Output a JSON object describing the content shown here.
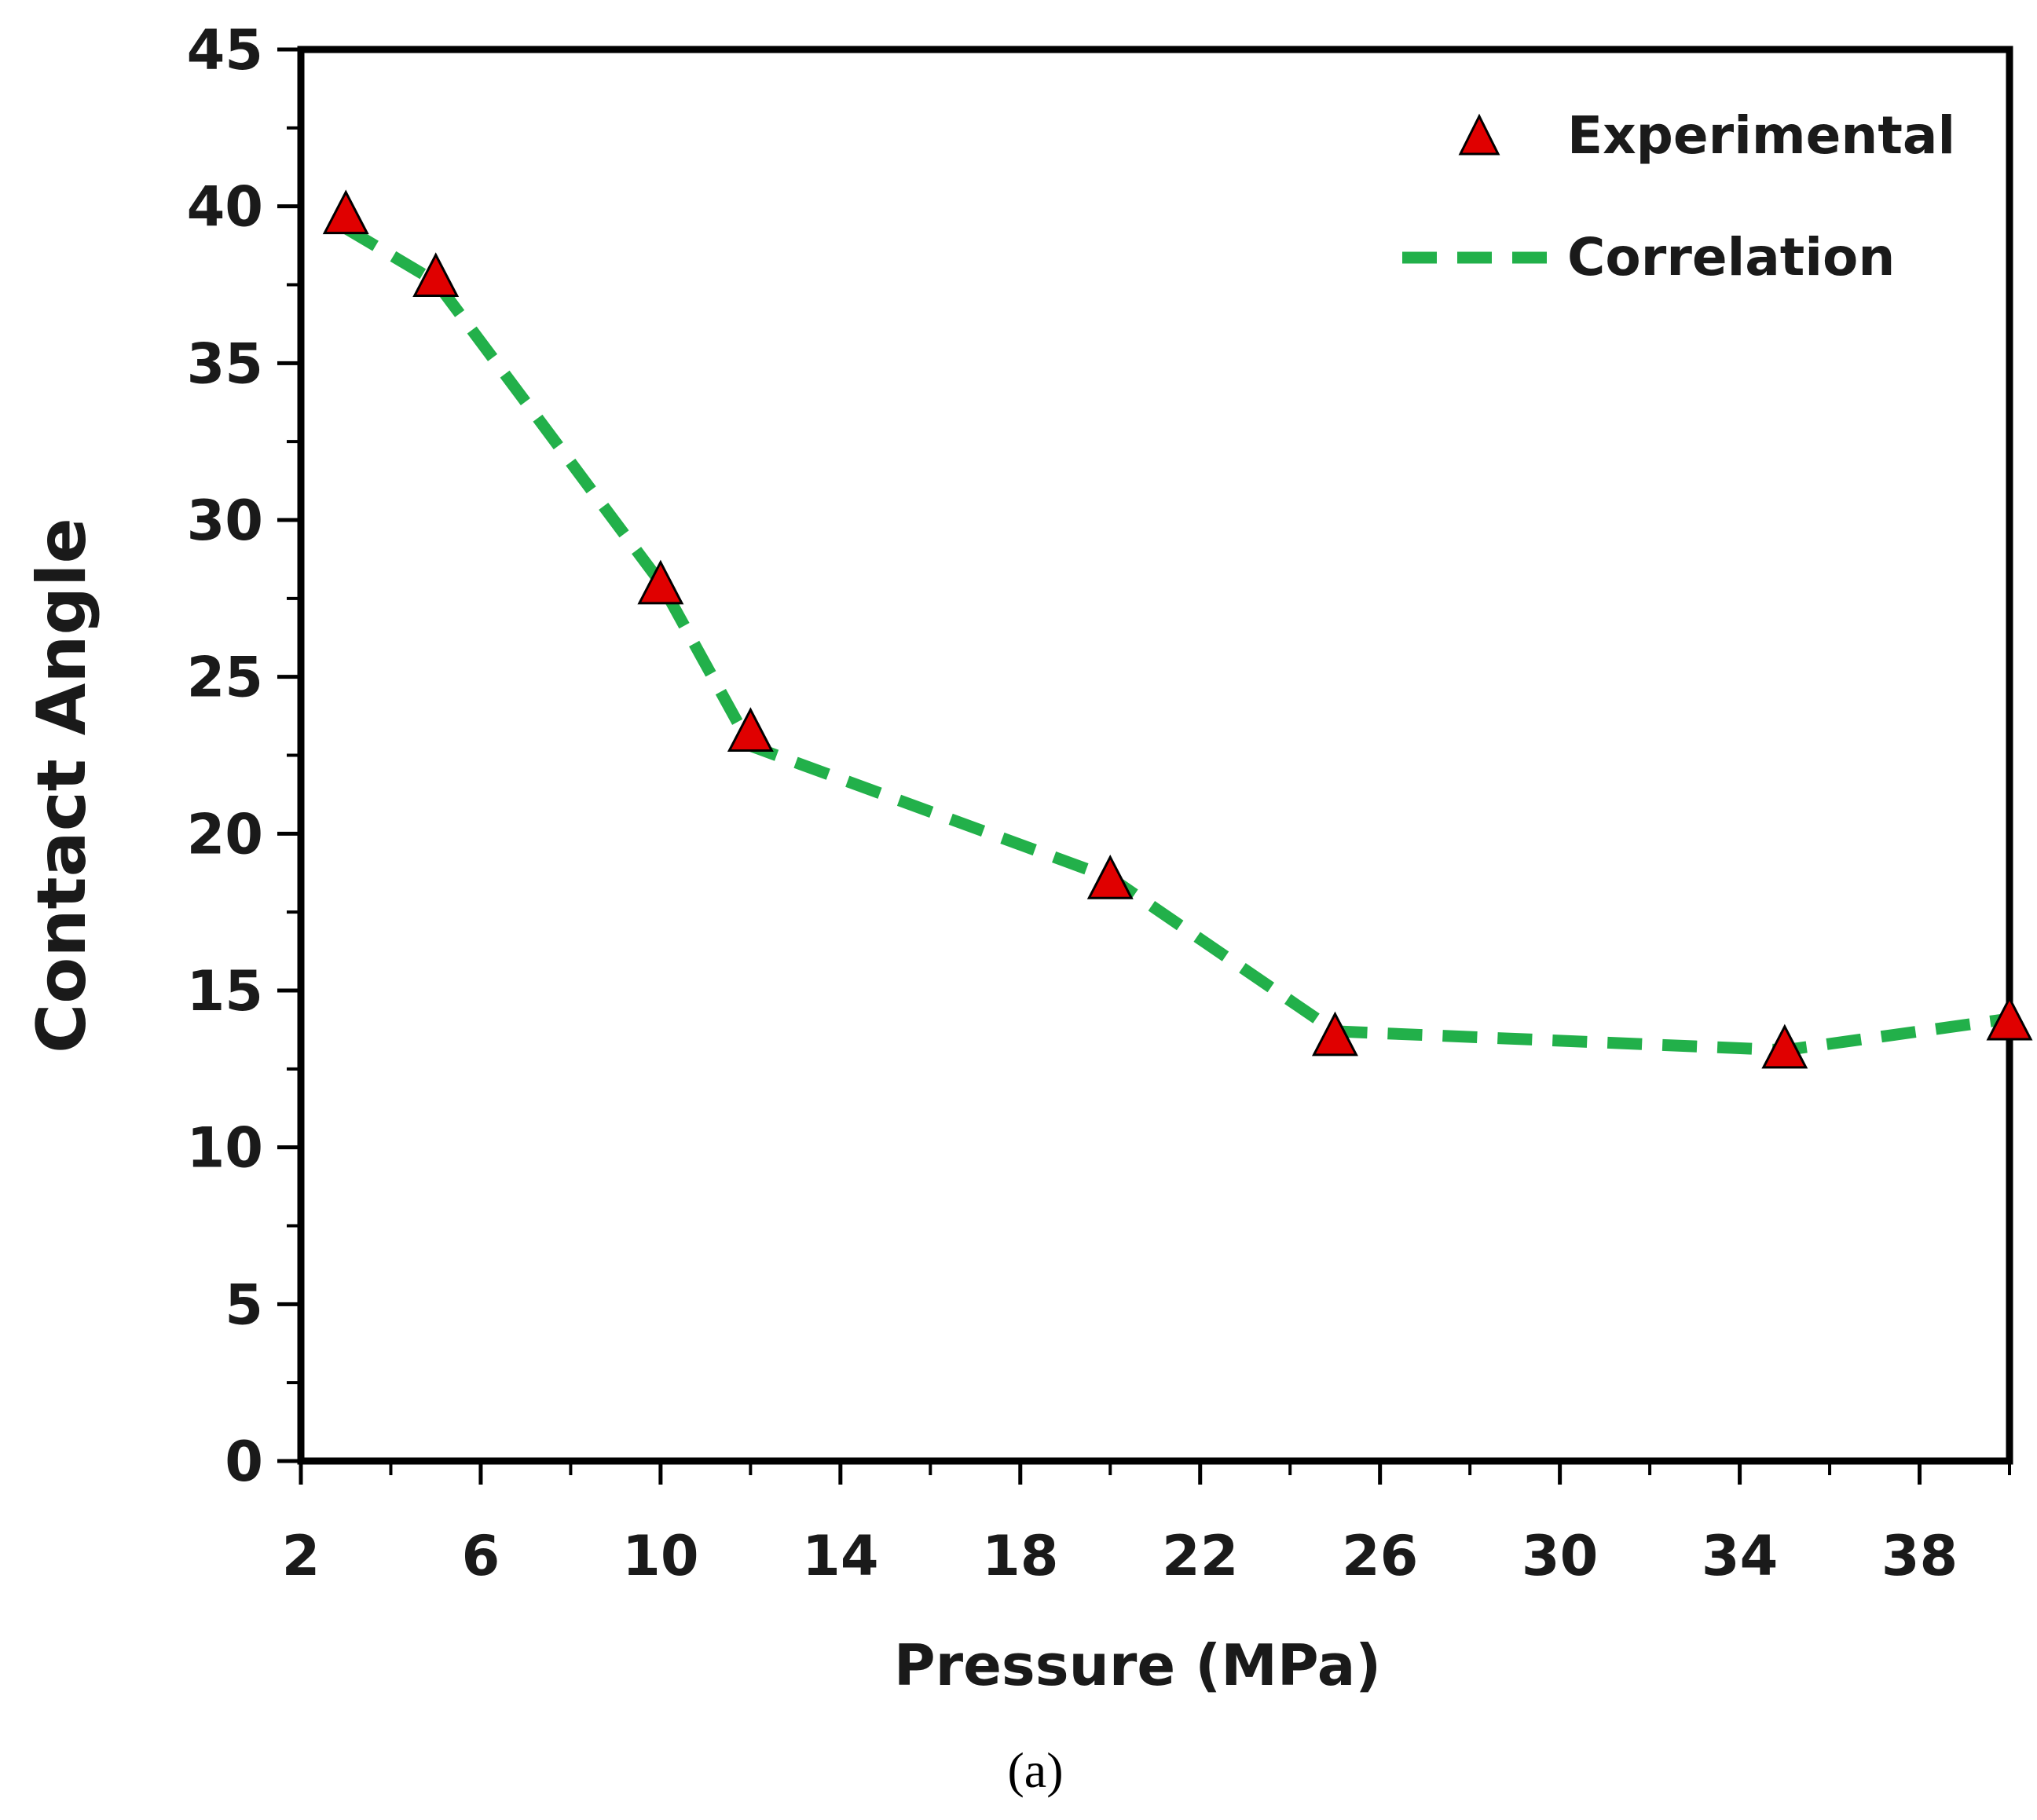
{
  "chart_data": {
    "type": "line",
    "title": "",
    "xlabel": "Pressure (MPa)",
    "ylabel": "Contact Angle",
    "caption": "(a)",
    "xlim": [
      2,
      40
    ],
    "ylim": [
      0,
      45
    ],
    "x_ticks": [
      2,
      6,
      10,
      14,
      18,
      22,
      26,
      30,
      34,
      38
    ],
    "y_ticks": [
      0,
      5,
      10,
      15,
      20,
      25,
      30,
      35,
      40,
      45
    ],
    "legend_position": "top-right",
    "series": [
      {
        "name": "Experimental",
        "kind": "scatter",
        "marker": "triangle",
        "color": "#e00000",
        "points": [
          {
            "x": 3,
            "y": 39.8
          },
          {
            "x": 5,
            "y": 37.8
          },
          {
            "x": 10,
            "y": 28.0
          },
          {
            "x": 12,
            "y": 23.3
          },
          {
            "x": 20,
            "y": 18.6
          },
          {
            "x": 25,
            "y": 13.6
          },
          {
            "x": 35,
            "y": 13.2
          },
          {
            "x": 40,
            "y": 14.1
          }
        ]
      },
      {
        "name": "Correlation",
        "kind": "line",
        "style": "dashed",
        "color": "#22b04a",
        "points": [
          {
            "x": 3,
            "y": 39.3
          },
          {
            "x": 5,
            "y": 37.6
          },
          {
            "x": 10,
            "y": 28.0
          },
          {
            "x": 12,
            "y": 22.8
          },
          {
            "x": 20,
            "y": 18.6
          },
          {
            "x": 25,
            "y": 13.7
          },
          {
            "x": 35,
            "y": 13.1
          },
          {
            "x": 40,
            "y": 14.1
          }
        ]
      }
    ]
  }
}
